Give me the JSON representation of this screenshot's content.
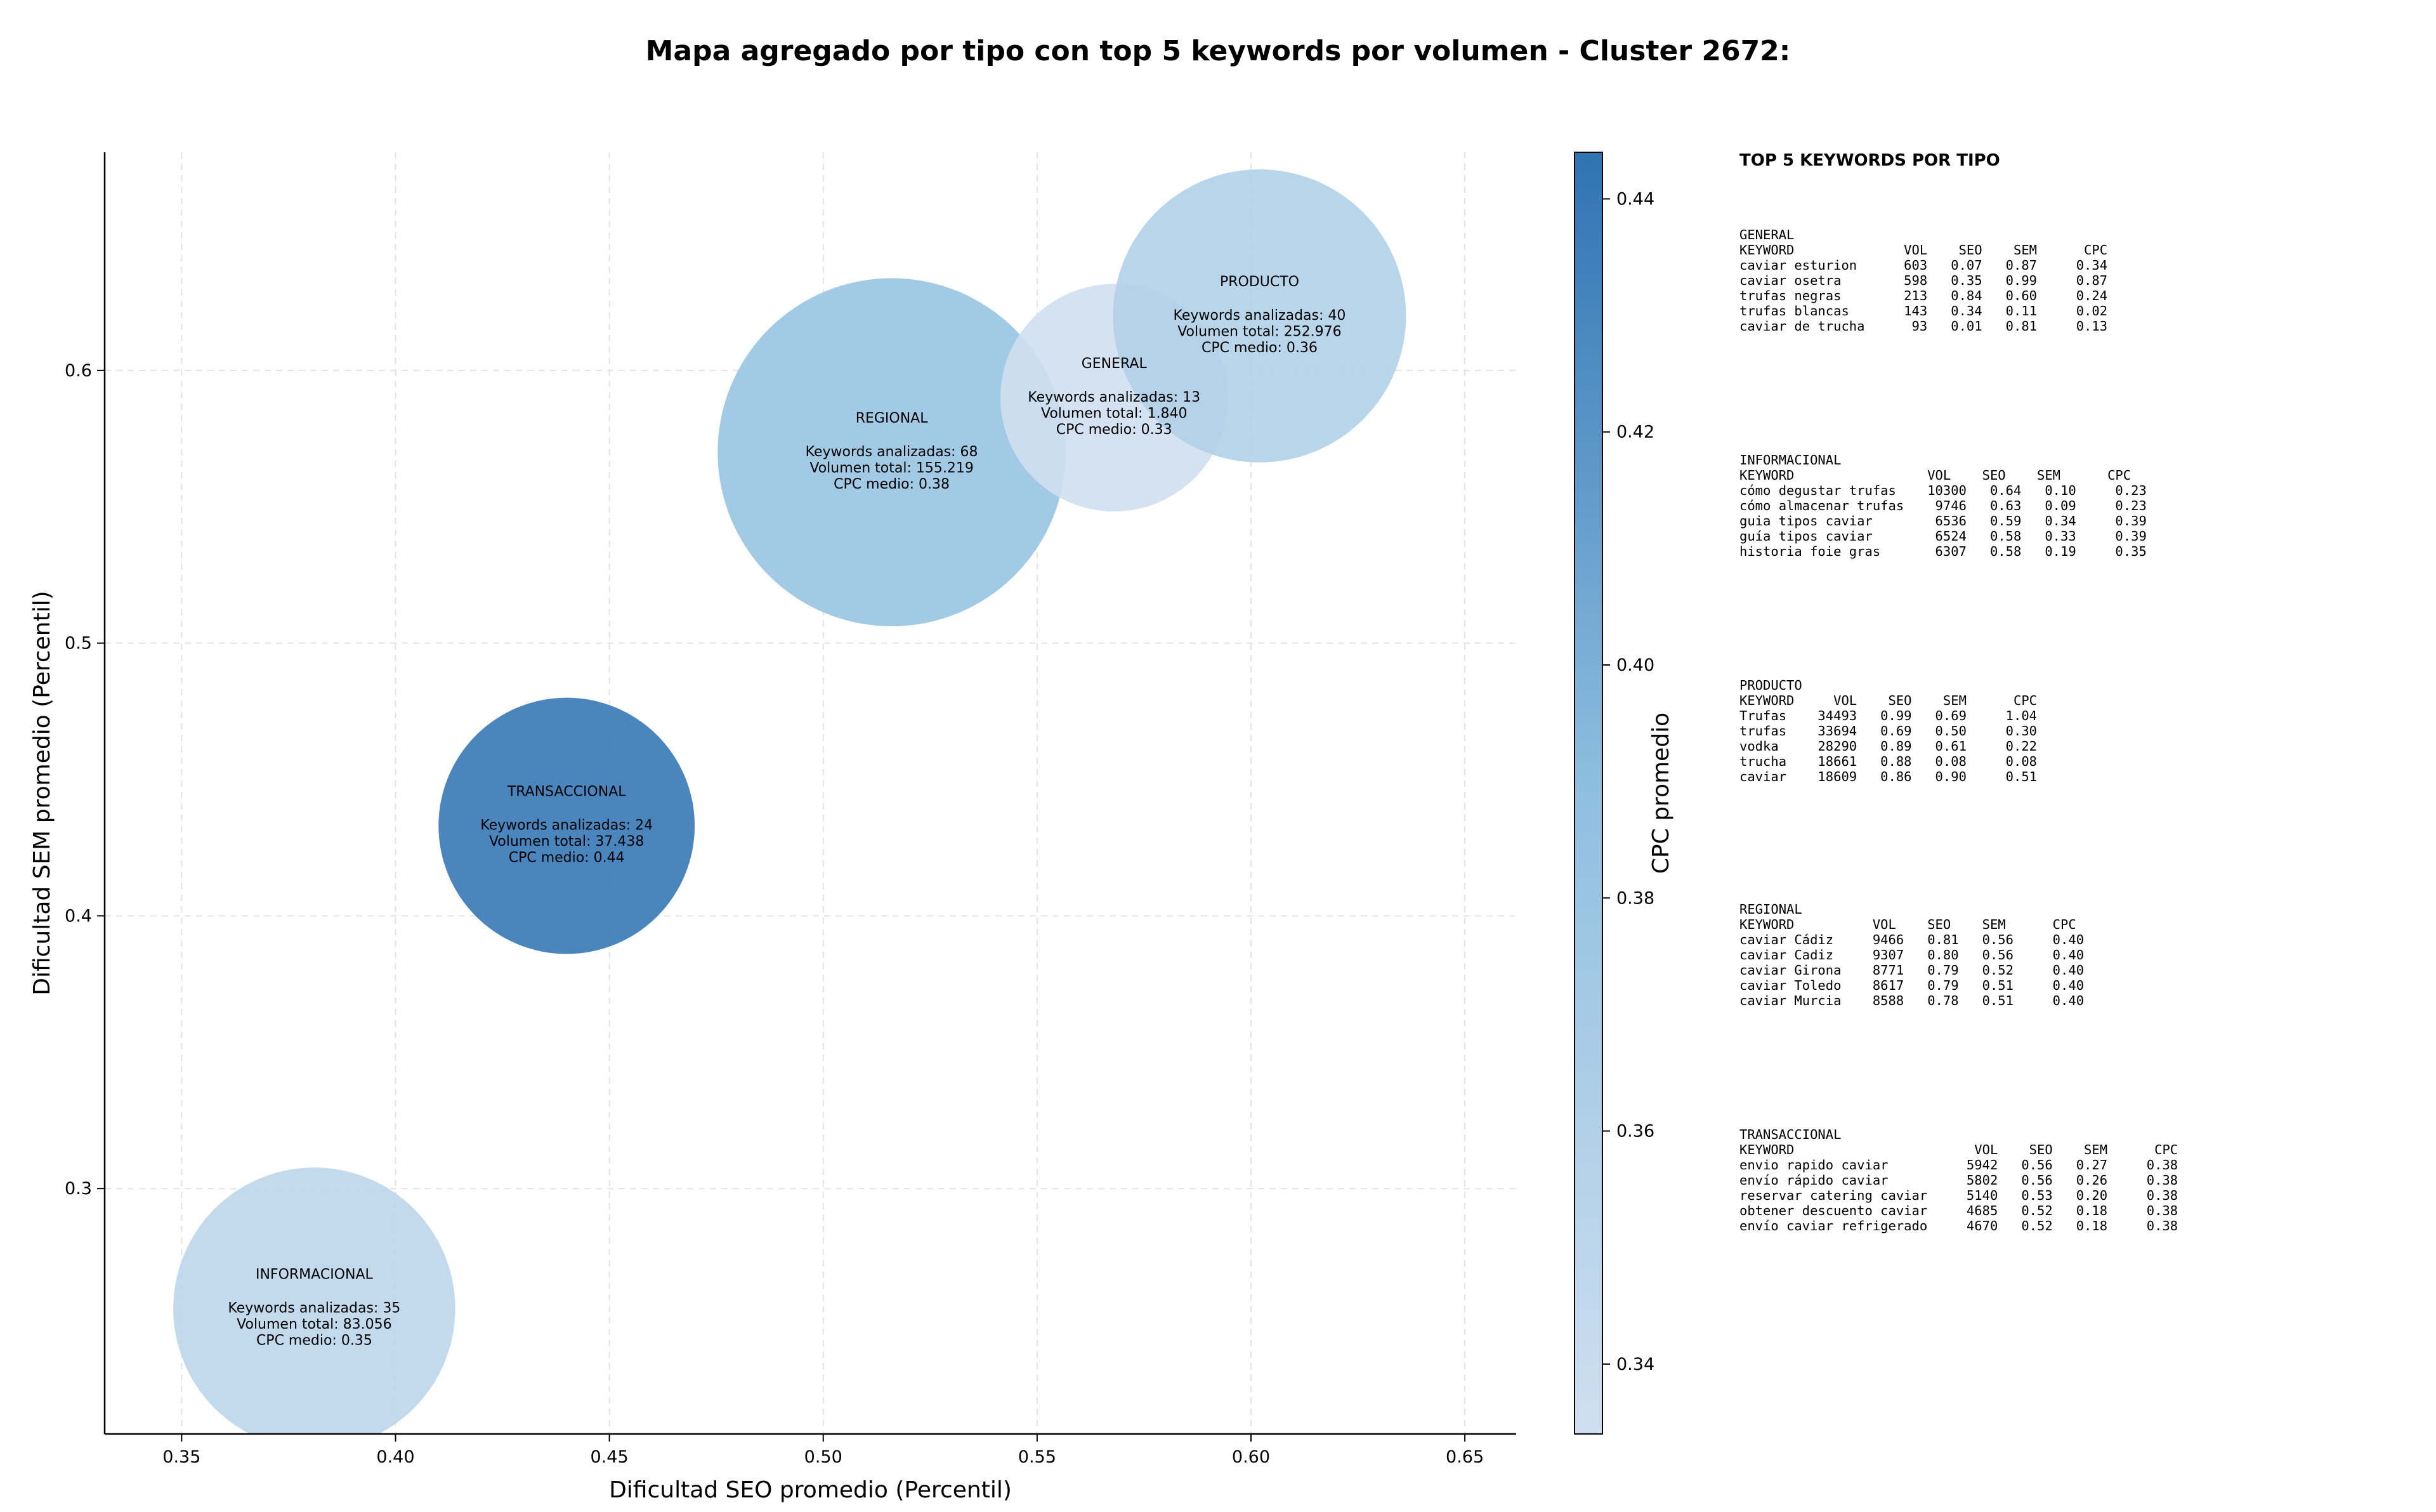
{
  "chart_data": {
    "type": "scatter",
    "title": "Mapa agregado por tipo con top 5 keywords por volumen - Cluster 2672:",
    "xlabel": "Dificultad SEO promedio (Percentil)",
    "ylabel": "Dificultad SEM promedio (Percentil)",
    "xlim": [
      0.332,
      0.662
    ],
    "ylim": [
      0.21,
      0.68
    ],
    "xticks": [
      "0.35",
      "0.40",
      "0.45",
      "0.50",
      "0.55",
      "0.60",
      "0.65"
    ],
    "yticks": [
      "0.3",
      "0.4",
      "0.5",
      "0.6"
    ],
    "grid": true,
    "colorbar": {
      "label": "CPC promedio",
      "range": [
        0.334,
        0.444
      ],
      "ticks": [
        "0.34",
        "0.36",
        "0.38",
        "0.40",
        "0.42",
        "0.44"
      ],
      "color_low": "#cfdff0",
      "color_high": "#2f73b3"
    },
    "series": [
      {
        "tipo": "INFORMACIONAL",
        "x": 0.381,
        "y": 0.256,
        "keywords": 35,
        "volumen": 83056,
        "cpc": 0.35,
        "lines": [
          "Keywords analizadas: 35",
          "Volumen total: 83.056",
          "CPC medio: 0.35"
        ]
      },
      {
        "tipo": "TRANSACCIONAL",
        "x": 0.44,
        "y": 0.433,
        "keywords": 24,
        "volumen": 37438,
        "cpc": 0.44,
        "lines": [
          "Keywords analizadas: 24",
          "Volumen total: 37.438",
          "CPC medio: 0.44"
        ]
      },
      {
        "tipo": "REGIONAL",
        "x": 0.516,
        "y": 0.57,
        "keywords": 68,
        "volumen": 155219,
        "cpc": 0.38,
        "lines": [
          "Keywords analizadas: 68",
          "Volumen total: 155.219",
          "CPC medio: 0.38"
        ]
      },
      {
        "tipo": "GENERAL",
        "x": 0.568,
        "y": 0.59,
        "keywords": 13,
        "volumen": 1840,
        "cpc": 0.33,
        "lines": [
          "Keywords analizadas: 13",
          "Volumen total: 1.840",
          "CPC medio: 0.33"
        ]
      },
      {
        "tipo": "PRODUCTO",
        "x": 0.602,
        "y": 0.62,
        "keywords": 40,
        "volumen": 252976,
        "cpc": 0.36,
        "lines": [
          "Keywords analizadas: 40",
          "Volumen total: 252.976",
          "CPC medio: 0.36"
        ]
      }
    ]
  },
  "side_panel": {
    "title": "TOP 5 KEYWORDS POR TIPO",
    "blocks": [
      {
        "name": "GENERAL",
        "text": "GENERAL\nKEYWORD              VOL    SEO    SEM      CPC\ncaviar esturion      603   0.07   0.87     0.34\ncaviar osetra        598   0.35   0.99     0.87\ntrufas negras        213   0.84   0.60     0.24\ntrufas blancas       143   0.34   0.11     0.02\ncaviar de trucha      93   0.01   0.81     0.13"
      },
      {
        "name": "INFORMACIONAL",
        "text": "INFORMACIONAL\nKEYWORD                 VOL    SEO    SEM      CPC\ncómo degustar trufas    10300   0.64   0.10     0.23\ncómo almacenar trufas    9746   0.63   0.09     0.23\nguia tipos caviar        6536   0.59   0.34     0.39\nguía tipos caviar        6524   0.58   0.33     0.39\nhistoria foie gras       6307   0.58   0.19     0.35"
      },
      {
        "name": "PRODUCTO",
        "text": "PRODUCTO\nKEYWORD     VOL    SEO    SEM      CPC\nTrufas    34493   0.99   0.69     1.04\ntrufas    33694   0.69   0.50     0.30\nvodka     28290   0.89   0.61     0.22\ntrucha    18661   0.88   0.08     0.08\ncaviar    18609   0.86   0.90     0.51"
      },
      {
        "name": "REGIONAL",
        "text": "REGIONAL\nKEYWORD          VOL    SEO    SEM      CPC\ncaviar Cádiz     9466   0.81   0.56     0.40\ncaviar Cadiz     9307   0.80   0.56     0.40\ncaviar Girona    8771   0.79   0.52     0.40\ncaviar Toledo    8617   0.79   0.51     0.40\ncaviar Murcia    8588   0.78   0.51     0.40"
      },
      {
        "name": "TRANSACCIONAL",
        "text": "TRANSACCIONAL\nKEYWORD                       VOL    SEO    SEM      CPC\nenvio rapido caviar          5942   0.56   0.27     0.38\nenvío rápido caviar          5802   0.56   0.26     0.38\nreservar catering caviar     5140   0.53   0.20     0.38\nobtener descuento caviar     4685   0.52   0.18     0.38\nenvío caviar refrigerado     4670   0.52   0.18     0.38"
      }
    ]
  }
}
